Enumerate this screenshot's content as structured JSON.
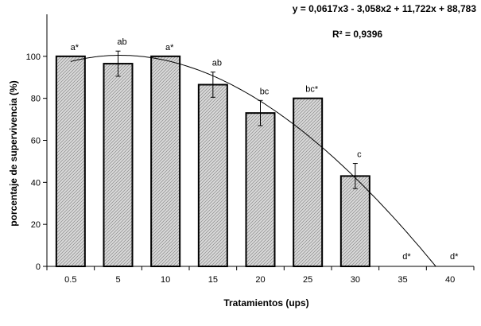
{
  "chart_data": {
    "type": "bar",
    "xlabel": "Tratamientos (ups)",
    "ylabel": "porcentaje de supervivencia (%)",
    "categories": [
      "0.5",
      "5",
      "10",
      "15",
      "20",
      "25",
      "30",
      "35",
      "40"
    ],
    "values": [
      100,
      96.5,
      100,
      86.5,
      73,
      80,
      43,
      0,
      0
    ],
    "errors": [
      0,
      6,
      0,
      6,
      6,
      0,
      6,
      0,
      0
    ],
    "labels": [
      "a*",
      "ab",
      "a*",
      "ab",
      "bc",
      "bc*",
      "c",
      "d*",
      "d*"
    ],
    "ylim": [
      0,
      120
    ],
    "yticks": [
      0,
      20,
      40,
      60,
      80,
      100
    ],
    "trendline": {
      "type": "polynomial",
      "equation": "y = 0,0617x3 - 3,058x2 + 11,722x + 88,783",
      "r2": "R² = 0,9396",
      "coefficients": {
        "a3": 0.0617,
        "a2": -3.058,
        "a1": 11.722,
        "a0": 88.783
      }
    },
    "grid": false,
    "legend": "none",
    "colors": {
      "bar_fill": "#d9d9d9",
      "bar_stroke": "#000000",
      "hatch": "#8a8a8a",
      "line": "#000000"
    }
  }
}
